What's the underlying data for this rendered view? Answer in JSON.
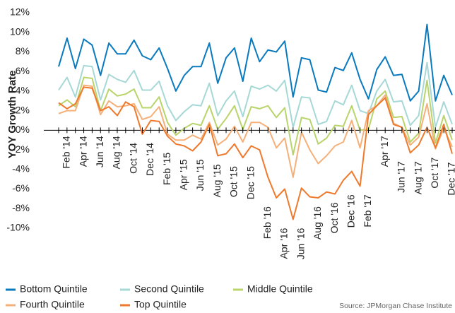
{
  "chart_data": {
    "type": "line",
    "y_label": "YOY Growth Rate",
    "source": "Source:  JPMorgan Chase Institute",
    "categories": [
      null,
      "Feb '14",
      null,
      "Apr '14",
      null,
      "Jun '14",
      null,
      "Aug '14",
      null,
      "Oct '14",
      null,
      "Dec '14",
      null,
      "Feb '15",
      null,
      "Apr '15",
      null,
      "Jun '15",
      null,
      "Aug '15",
      null,
      "Oct '15",
      null,
      "Dec '15",
      null,
      "Feb '16",
      null,
      "Apr '16",
      null,
      "Jun '16",
      null,
      "Aug '16",
      null,
      "Oct '16",
      null,
      "Dec '16",
      null,
      "Feb '17",
      null,
      "Apr '17",
      null,
      "Jun '17",
      null,
      "Aug '17",
      null,
      "Oct '17",
      null,
      "Dec '17"
    ],
    "series": [
      {
        "name": "Bottom Quintile",
        "color": "#0a7abf",
        "values": [
          6.5,
          9.4,
          6.3,
          9.3,
          8.7,
          5.6,
          8.9,
          7.8,
          7.8,
          9.2,
          7.6,
          7.2,
          8.4,
          6.3,
          4.0,
          5.6,
          6.5,
          6.5,
          8.9,
          4.8,
          7.4,
          8.4,
          5.0,
          9.4,
          7.0,
          8.2,
          8.0,
          9.1,
          3.4,
          7.4,
          7.2,
          4.1,
          3.9,
          6.4,
          6.1,
          7.9,
          5.2,
          3.2,
          6.2,
          7.5,
          5.6,
          5.7,
          3.0,
          4.0,
          10.8,
          3.0,
          5.6,
          3.6
        ]
      },
      {
        "name": "Second Quintile",
        "color": "#a6d8d6",
        "values": [
          4.1,
          5.4,
          3.4,
          6.6,
          6.5,
          3.1,
          5.7,
          5.2,
          4.9,
          6.1,
          4.1,
          4.1,
          5.0,
          2.5,
          1.0,
          1.9,
          2.6,
          2.5,
          4.8,
          1.5,
          3.0,
          4.0,
          1.4,
          4.5,
          4.2,
          4.6,
          4.0,
          5.1,
          0.3,
          3.4,
          3.3,
          0.6,
          0.9,
          3.0,
          2.6,
          4.6,
          2.0,
          1.7,
          4.0,
          5.2,
          2.9,
          3.0,
          0.5,
          1.5,
          6.9,
          0.3,
          2.9,
          0.6
        ]
      },
      {
        "name": "Middle Quintile",
        "color": "#b8d46a",
        "values": [
          2.5,
          3.1,
          2.4,
          5.4,
          5.3,
          2.0,
          4.2,
          3.5,
          3.7,
          4.2,
          2.3,
          2.3,
          3.4,
          0.8,
          -0.5,
          0.2,
          0.7,
          0.5,
          2.5,
          0.1,
          1.2,
          2.5,
          0.1,
          2.4,
          2.2,
          2.5,
          1.3,
          2.3,
          -2.5,
          1.3,
          1.1,
          -1.4,
          -0.8,
          0.5,
          0.4,
          2.5,
          0.0,
          0.1,
          3.2,
          4.0,
          1.3,
          1.4,
          -1.2,
          -0.3,
          5.1,
          -1.3,
          1.5,
          -1.0
        ]
      },
      {
        "name": "Fourth Quintile",
        "color": "#f5b07a",
        "values": [
          1.7,
          2.0,
          2.0,
          4.6,
          4.5,
          1.6,
          3.0,
          2.4,
          2.5,
          2.7,
          1.1,
          1.4,
          2.4,
          -0.4,
          -1.0,
          -1.0,
          -0.5,
          -0.9,
          0.8,
          -1.5,
          -0.9,
          0.4,
          -1.2,
          0.8,
          0.8,
          0.3,
          -1.8,
          -0.8,
          -4.8,
          -0.2,
          -2.0,
          -3.4,
          -2.6,
          -1.6,
          -1.2,
          1.0,
          -1.8,
          2.0,
          2.5,
          3.6,
          0.7,
          0.3,
          -1.5,
          -0.7,
          2.7,
          -1.9,
          0.2,
          -1.7
        ]
      },
      {
        "name": "Top Quintile",
        "color": "#ee7a2d",
        "values": [
          2.8,
          2.2,
          2.7,
          4.4,
          4.3,
          2.0,
          2.4,
          1.5,
          2.9,
          2.4,
          -0.4,
          1.0,
          0.9,
          -0.6,
          -1.4,
          -1.6,
          -2.1,
          -1.2,
          0.6,
          -2.6,
          -2.4,
          -1.4,
          -2.8,
          -1.6,
          -2.0,
          -4.8,
          -6.9,
          -6.0,
          -9.1,
          -5.9,
          -6.8,
          -6.9,
          -6.3,
          -6.5,
          -5.1,
          -4.2,
          -5.7,
          1.6,
          2.5,
          3.3,
          0.6,
          0.3,
          -2.3,
          -1.5,
          0.3,
          -1.8,
          0.6,
          -2.4
        ]
      }
    ],
    "ylim": [
      -10,
      12
    ],
    "yticks": [
      {
        "value": -10,
        "label": "-10%"
      },
      {
        "value": -8,
        "label": "-8%"
      },
      {
        "value": -6,
        "label": "-6%"
      },
      {
        "value": -4,
        "label": "-4%"
      },
      {
        "value": -2,
        "label": "-2%"
      },
      {
        "value": 0,
        "label": "0%"
      },
      {
        "value": 2,
        "label": "2%"
      },
      {
        "value": 4,
        "label": "4%"
      },
      {
        "value": 6,
        "label": "6%"
      },
      {
        "value": 8,
        "label": "8%"
      },
      {
        "value": 10,
        "label": "10%"
      },
      {
        "value": 12,
        "label": "12%"
      }
    ],
    "grid": false
  }
}
